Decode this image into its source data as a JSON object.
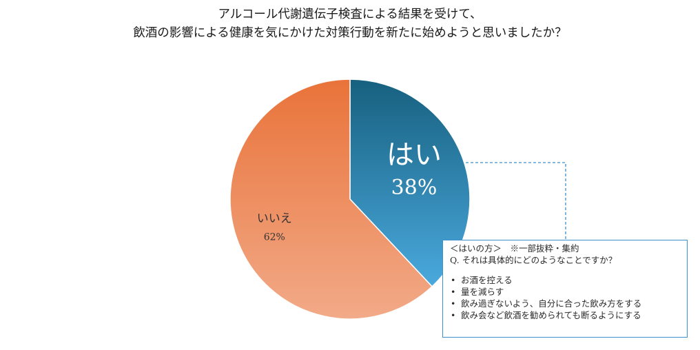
{
  "title": {
    "line1": "アルコール代謝遺伝子検査による結果を受けて、",
    "line2": "飲酒の影響による健康を気にかけた対策行動を新たに始めようと思いましたか？"
  },
  "chart_data": {
    "type": "pie",
    "title": "アルコール代謝遺伝子検査による結果を受けて、飲酒の影響による健康を気にかけた対策行動を新たに始めようと思いましたか？",
    "slices": [
      {
        "label": "はい",
        "value": 38,
        "value_label": "38%",
        "color_start": "#17607f",
        "color_end": "#4aa9dd",
        "label_color": "#ffffff"
      },
      {
        "label": "いいえ",
        "value": 62,
        "value_label": "62%",
        "color_start": "#e9733a",
        "color_end": "#f2aa88",
        "label_color": "#333333"
      }
    ],
    "start_angle": "12 o'clock",
    "direction": "clockwise"
  },
  "note": {
    "header": "＜はいの方＞　※一部抜粋・集約",
    "question": "Q. それは具体的にどのようなことですか？",
    "items": [
      "お酒を控える",
      "量を減らす",
      "飲み過ぎないよう、自分に合った飲み方をする",
      "飲み会など飲酒を勧められても断るようにする"
    ],
    "border_color": "#3d8fcb"
  }
}
